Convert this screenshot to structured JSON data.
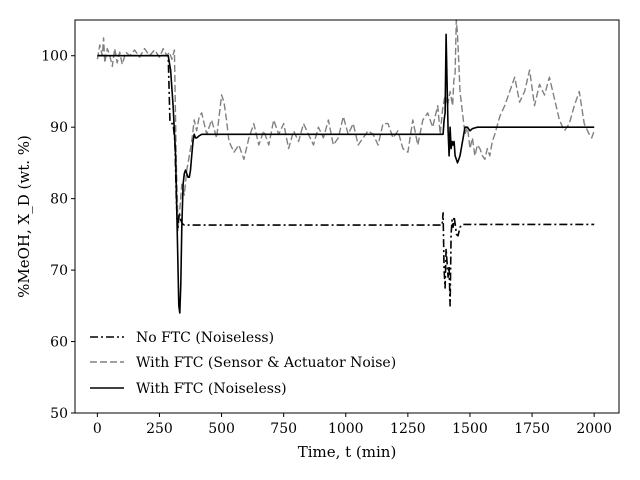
{
  "chart_data": {
    "type": "line",
    "xlabel": "Time, t (min)",
    "ylabel": "%MeOH, X_D (wt. %)",
    "xlim": [
      -90,
      2100
    ],
    "ylim": [
      50,
      105
    ],
    "x_ticks": [
      "0",
      "250",
      "500",
      "750",
      "1000",
      "1250",
      "1500",
      "1750",
      "2000"
    ],
    "y_ticks": [
      "50",
      "60",
      "70",
      "80",
      "90",
      "100"
    ],
    "legend_position": "lower-left",
    "series": [
      {
        "name": "No FTC (Noiseless)",
        "color": "#000000",
        "style": "dashdot",
        "x": [
          0,
          285,
          292,
          298,
          305,
          312,
          318,
          323,
          326,
          330,
          336,
          342,
          350,
          362,
          380,
          420,
          600,
          1000,
          1388,
          1392,
          1396,
          1400,
          1404,
          1408,
          1412,
          1416,
          1420,
          1424,
          1428,
          1432,
          1436,
          1440,
          1446,
          1452,
          1460,
          1470,
          1500,
          2000
        ],
        "y": [
          100,
          100,
          91,
          90.5,
          90.5,
          88,
          80,
          75.5,
          76.5,
          78,
          77,
          76.5,
          76.3,
          76.3,
          76.3,
          76.3,
          76.3,
          76.3,
          76.3,
          78,
          70,
          67.5,
          73,
          71,
          69,
          70.5,
          65,
          75,
          77,
          76,
          77.5,
          76.5,
          75,
          74.8,
          76,
          76.4,
          76.4,
          76.4
        ]
      },
      {
        "name": "With FTC (Sensor & Actuator Noise)",
        "color": "#808080",
        "style": "dashed",
        "x": [
          0,
          10,
          20,
          25,
          30,
          40,
          50,
          60,
          70,
          80,
          90,
          100,
          115,
          130,
          150,
          170,
          190,
          210,
          230,
          250,
          265,
          280,
          290,
          300,
          310,
          318,
          325,
          332,
          340,
          350,
          360,
          370,
          380,
          390,
          400,
          410,
          420,
          440,
          460,
          480,
          500,
          510,
          520,
          530,
          550,
          570,
          590,
          610,
          630,
          650,
          670,
          690,
          710,
          730,
          750,
          770,
          790,
          810,
          830,
          850,
          870,
          890,
          910,
          930,
          950,
          970,
          990,
          1010,
          1030,
          1050,
          1070,
          1090,
          1110,
          1130,
          1150,
          1170,
          1190,
          1210,
          1230,
          1250,
          1270,
          1290,
          1310,
          1330,
          1350,
          1370,
          1380,
          1390,
          1400,
          1410,
          1420,
          1430,
          1435,
          1440,
          1445,
          1450,
          1455,
          1460,
          1470,
          1480,
          1490,
          1500,
          1510,
          1520,
          1530,
          1540,
          1550,
          1560,
          1570,
          1580,
          1590,
          1600,
          1620,
          1640,
          1660,
          1680,
          1700,
          1720,
          1740,
          1760,
          1780,
          1800,
          1820,
          1840,
          1860,
          1880,
          1900,
          1920,
          1940,
          1960,
          1980,
          1990,
          2000
        ],
        "y": [
          99.5,
          101.5,
          100,
          102.5,
          99,
          101,
          100,
          98.5,
          101,
          99,
          100.5,
          98.8,
          100.5,
          100,
          100.8,
          99.8,
          101,
          100,
          100.8,
          99.8,
          101,
          100,
          100.5,
          99.5,
          100.8,
          85,
          76,
          78.5,
          82,
          80.5,
          84,
          86,
          88,
          91,
          89.5,
          91.5,
          92,
          89,
          91,
          88.5,
          94.5,
          93.5,
          91,
          88,
          86.5,
          87.5,
          85.5,
          88.5,
          90.5,
          87.5,
          89.5,
          87.5,
          91,
          89,
          90.5,
          87,
          89.5,
          88,
          90.5,
          89,
          87.5,
          90,
          88.5,
          91,
          87.5,
          88.5,
          91.5,
          89,
          90.5,
          87.5,
          88.5,
          89.5,
          89,
          87.5,
          90.5,
          90.5,
          88.5,
          89.5,
          87,
          86.5,
          91,
          87.5,
          91,
          92,
          90,
          93,
          89,
          92.5,
          94.5,
          93,
          95,
          93,
          96.5,
          97.5,
          105,
          103,
          99,
          95,
          92,
          89,
          90,
          87,
          88.5,
          86,
          87.5,
          87,
          86,
          85.5,
          87,
          86,
          88,
          89,
          91.5,
          93,
          95,
          97,
          93.5,
          95,
          98,
          93,
          96,
          94.5,
          97,
          94,
          91,
          89.5,
          90.5,
          93,
          95,
          90.5,
          89,
          88.5,
          89.5
        ]
      },
      {
        "name": "With FTC (Noiseless)",
        "color": "#000000",
        "style": "solid",
        "x": [
          0,
          285,
          295,
          305,
          315,
          322,
          328,
          332,
          336,
          340,
          345,
          350,
          355,
          360,
          365,
          370,
          375,
          380,
          385,
          390,
          395,
          400,
          410,
          420,
          430,
          450,
          500,
          700,
          1000,
          1380,
          1392,
          1396,
          1400,
          1404,
          1408,
          1412,
          1416,
          1420,
          1424,
          1428,
          1432,
          1436,
          1440,
          1445,
          1450,
          1455,
          1460,
          1470,
          1480,
          1490,
          1500,
          1510,
          1530,
          1600,
          2000
        ],
        "y": [
          100,
          100,
          98,
          93,
          86,
          75,
          65,
          64,
          68,
          76,
          82,
          83.5,
          84,
          83.5,
          83,
          83,
          84,
          86,
          88,
          89,
          88.5,
          88.5,
          88.8,
          89,
          89,
          89,
          89,
          89,
          89,
          89,
          89,
          91,
          92,
          103,
          96,
          89.5,
          86,
          90,
          87,
          88,
          87.5,
          88,
          86,
          85.5,
          85,
          85.5,
          86,
          88,
          90,
          90,
          89.5,
          89.8,
          90,
          90,
          90
        ]
      }
    ]
  }
}
